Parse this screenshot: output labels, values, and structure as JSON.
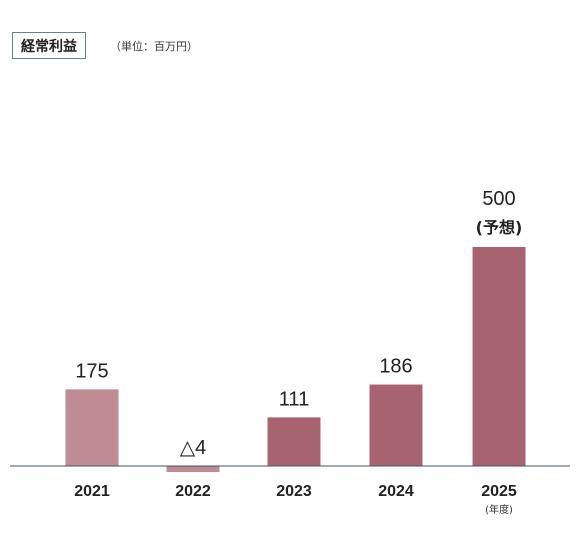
{
  "chart_data": {
    "type": "bar",
    "title": "経常利益",
    "unit_label": "（単位：百万円）",
    "x_unit": "(年度)",
    "categories": [
      "2021",
      "2022",
      "2023",
      "2024",
      "2025"
    ],
    "values": [
      175,
      -4,
      111,
      186,
      500
    ],
    "value_labels": [
      "175",
      "△4",
      "111",
      "186",
      "500"
    ],
    "forecast_note": "(予想)",
    "colors": [
      "#bf8b95",
      "#bf8b95",
      "#a76470",
      "#a76470",
      "#a76470"
    ],
    "axis_color": "#3f5566",
    "ylim": [
      -4,
      500
    ]
  }
}
